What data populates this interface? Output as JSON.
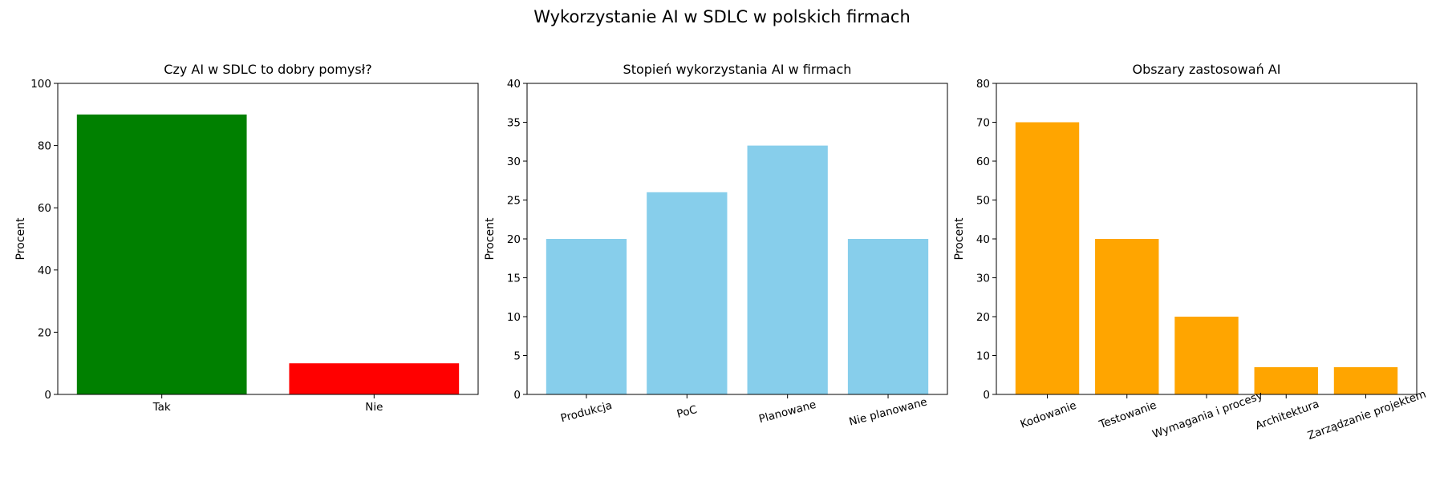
{
  "figure": {
    "suptitle": "Wykorzystanie AI w SDLC w polskich firmach"
  },
  "chart_data": [
    {
      "type": "bar",
      "title": "Czy AI w SDLC to dobry pomysł?",
      "xlabel": "",
      "ylabel": "Procent",
      "categories": [
        "Tak",
        "Nie"
      ],
      "values": [
        90,
        10
      ],
      "colors": [
        "#008000",
        "#ff0000"
      ],
      "ylim": [
        0,
        100
      ],
      "yticks": [
        0,
        20,
        40,
        60,
        80,
        100
      ],
      "xtick_rotation": 0,
      "grid": false
    },
    {
      "type": "bar",
      "title": "Stopień wykorzystania AI w firmach",
      "xlabel": "",
      "ylabel": "Procent",
      "categories": [
        "Produkcja",
        "PoC",
        "Planowane",
        "Nie planowane"
      ],
      "values": [
        20,
        26,
        32,
        20
      ],
      "colors": [
        "#87ceeb",
        "#87ceeb",
        "#87ceeb",
        "#87ceeb"
      ],
      "ylim": [
        0,
        40
      ],
      "yticks": [
        0,
        5,
        10,
        15,
        20,
        25,
        30,
        35,
        40
      ],
      "xtick_rotation": 15,
      "grid": false
    },
    {
      "type": "bar",
      "title": "Obszary zastosowań AI",
      "xlabel": "",
      "ylabel": "Procent",
      "categories": [
        "Kodowanie",
        "Testowanie",
        "Wymagania i procesy",
        "Architektura",
        "Zarządzanie projektem"
      ],
      "values": [
        70,
        40,
        20,
        7,
        7
      ],
      "colors": [
        "#ffa500",
        "#ffa500",
        "#ffa500",
        "#ffa500",
        "#ffa500"
      ],
      "ylim": [
        0,
        80
      ],
      "yticks": [
        0,
        10,
        20,
        30,
        40,
        50,
        60,
        70,
        80
      ],
      "xtick_rotation": 20,
      "grid": false
    }
  ]
}
